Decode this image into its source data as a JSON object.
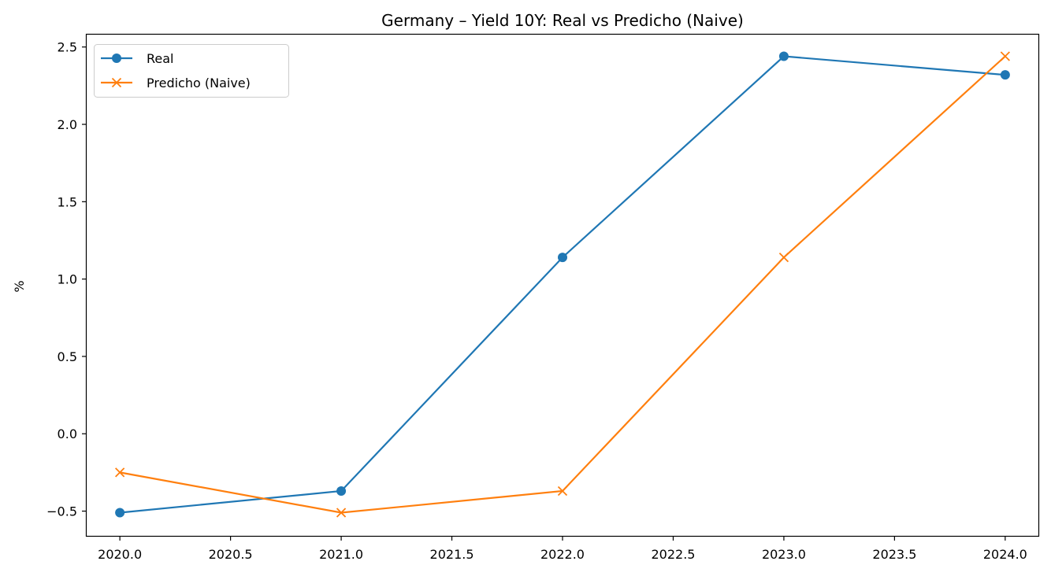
{
  "chart_data": {
    "type": "line",
    "title": "Germany – Yield 10Y: Real vs Predicho (Naive)",
    "xlabel": "",
    "ylabel": "%",
    "xlim": [
      2019.85,
      2024.15
    ],
    "ylim": [
      -0.66,
      2.58
    ],
    "xticks": [
      2020.0,
      2020.5,
      2021.0,
      2021.5,
      2022.0,
      2022.5,
      2023.0,
      2023.5,
      2024.0
    ],
    "xtick_labels": [
      "2020.0",
      "2020.5",
      "2021.0",
      "2021.5",
      "2022.0",
      "2022.5",
      "2023.0",
      "2023.5",
      "2024.0"
    ],
    "yticks": [
      -0.5,
      0.0,
      0.5,
      1.0,
      1.5,
      2.0,
      2.5
    ],
    "ytick_labels": [
      "−0.5",
      "0.0",
      "0.5",
      "1.0",
      "1.5",
      "2.0",
      "2.5"
    ],
    "grid": false,
    "legend_position": "top-left",
    "x": [
      2020,
      2021,
      2022,
      2023,
      2024
    ],
    "series": [
      {
        "name": "Real",
        "values": [
          -0.51,
          -0.37,
          1.14,
          2.44,
          2.32
        ],
        "color": "#1f77b4",
        "marker": "circle"
      },
      {
        "name": "Predicho (Naive)",
        "values": [
          -0.25,
          -0.51,
          -0.37,
          1.14,
          2.44
        ],
        "color": "#ff7f0e",
        "marker": "x"
      }
    ]
  }
}
